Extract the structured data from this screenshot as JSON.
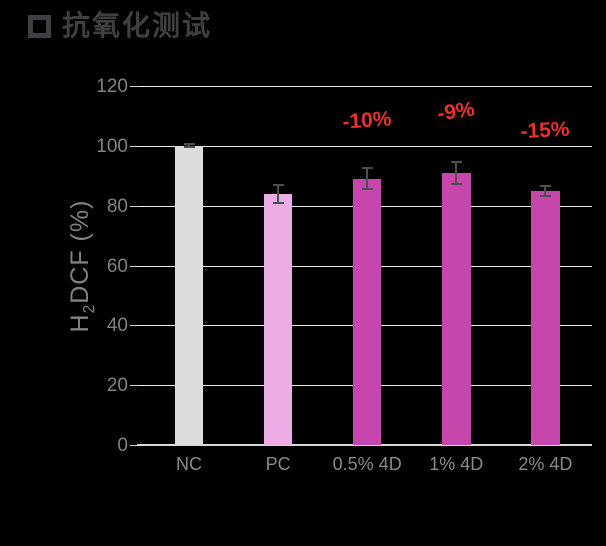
{
  "header": {
    "bullet_icon": "square-outline",
    "title": "抗氧化测试"
  },
  "y_axis": {
    "label_pre": "H",
    "label_sub": "2",
    "label_post": "DCF (%)"
  },
  "chart_data": {
    "type": "bar",
    "title": "抗氧化测试",
    "categories": [
      "NC",
      "PC",
      "0.5% 4D",
      "1% 4D",
      "2% 4D"
    ],
    "values": [
      100,
      84,
      89,
      91,
      85
    ],
    "errors": [
      0.5,
      3,
      3.5,
      3.7,
      1.7
    ],
    "bar_colors": [
      "#dcdcdc",
      "#edace6",
      "#c746ac",
      "#c746ac",
      "#c746ac"
    ],
    "annotations": [
      {
        "category_index": 2,
        "text": "-10%"
      },
      {
        "category_index": 3,
        "text": "-9%"
      },
      {
        "category_index": 4,
        "text": "-15%"
      }
    ],
    "annotation_color": "#e8322b",
    "xlabel": "",
    "ylabel": "H2DCF (%)",
    "ylim": [
      0,
      120
    ],
    "yticks": [
      0,
      20,
      40,
      60,
      80,
      100,
      120
    ],
    "grid": true,
    "legend": false,
    "background": "#000000",
    "text_color": "#828282",
    "gridline_color": "#ededed",
    "error_bar_color": "#4f4f4f"
  }
}
